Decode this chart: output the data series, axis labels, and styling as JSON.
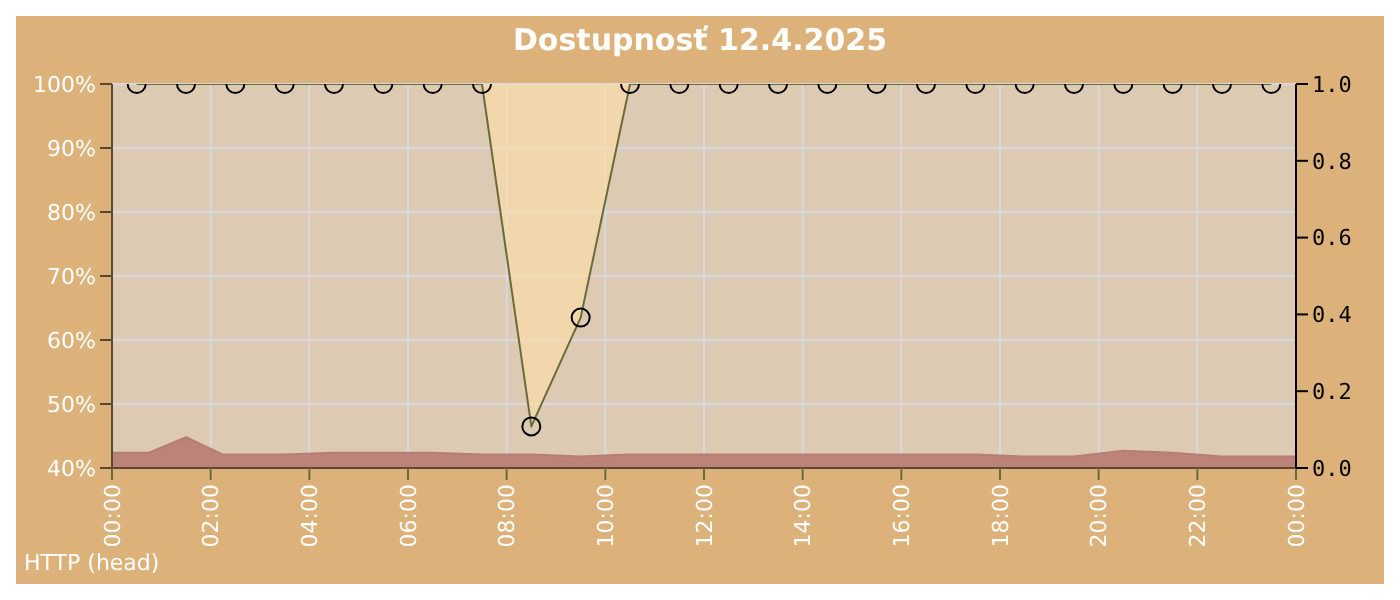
{
  "chart_data": {
    "type": "line",
    "title": "Dostupnosť 12.4.2025",
    "annotations": [
      "HTTP (head)"
    ],
    "xlim": [
      0,
      24
    ],
    "xticks": [
      {
        "value": 0,
        "label": "00:00"
      },
      {
        "value": 2,
        "label": "02:00"
      },
      {
        "value": 4,
        "label": "04:00"
      },
      {
        "value": 6,
        "label": "06:00"
      },
      {
        "value": 8,
        "label": "08:00"
      },
      {
        "value": 10,
        "label": "10:00"
      },
      {
        "value": 12,
        "label": "12:00"
      },
      {
        "value": 14,
        "label": "14:00"
      },
      {
        "value": 16,
        "label": "16:00"
      },
      {
        "value": 18,
        "label": "18:00"
      },
      {
        "value": 20,
        "label": "20:00"
      },
      {
        "value": 22,
        "label": "22:00"
      },
      {
        "value": 24,
        "label": "00:00"
      }
    ],
    "ylim": [
      40,
      100
    ],
    "yticks": [
      {
        "value": 40,
        "label": "40%"
      },
      {
        "value": 50,
        "label": "50%"
      },
      {
        "value": 60,
        "label": "60%"
      },
      {
        "value": 70,
        "label": "70%"
      },
      {
        "value": 80,
        "label": "80%"
      },
      {
        "value": 90,
        "label": "90%"
      },
      {
        "value": 100,
        "label": "100%"
      }
    ],
    "y2lim": [
      0,
      1
    ],
    "y2ticks": [
      {
        "value": 0,
        "label": "0.0"
      },
      0.2,
      0.4,
      0.6,
      0.8,
      {
        "value": 1,
        "label": "1.0"
      }
    ],
    "grid": true,
    "legend": false,
    "marker": "circle",
    "series": [
      {
        "type": "area",
        "axis": "y2",
        "marker": "none",
        "color": "#b87c72",
        "x": [
          0,
          0.75,
          1.5,
          2.25,
          3.5,
          4.5,
          5.5,
          6.5,
          7.5,
          8.5,
          9.5,
          10.5,
          11.5,
          12.5,
          13.5,
          14.5,
          15.5,
          16.5,
          17.5,
          18.5,
          19.5,
          20.5,
          21.5,
          22.5,
          23.5,
          24
        ],
        "values": [
          0.04,
          0.04,
          0.08,
          0.035,
          0.035,
          0.04,
          0.04,
          0.04,
          0.035,
          0.035,
          0.03,
          0.035,
          0.035,
          0.035,
          0.035,
          0.035,
          0.035,
          0.035,
          0.035,
          0.03,
          0.03,
          0.045,
          0.04,
          0.03,
          0.03,
          0.03
        ]
      },
      {
        "color": "#6b6b3a",
        "x": [
          0.5,
          1.5,
          2.5,
          3.5,
          4.5,
          5.5,
          6.5,
          7.5,
          8.5,
          9.5,
          10.5,
          11.5,
          12.5,
          13.5,
          14.5,
          15.5,
          16.5,
          17.5,
          18.5,
          19.5,
          20.5,
          21.5,
          22.5,
          23.5
        ],
        "values": [
          100,
          100,
          100,
          100,
          100,
          100,
          100,
          100,
          46.5,
          63.5,
          100,
          100,
          100,
          100,
          100,
          100,
          100,
          100,
          100,
          100,
          100,
          100,
          100,
          100
        ]
      }
    ]
  }
}
